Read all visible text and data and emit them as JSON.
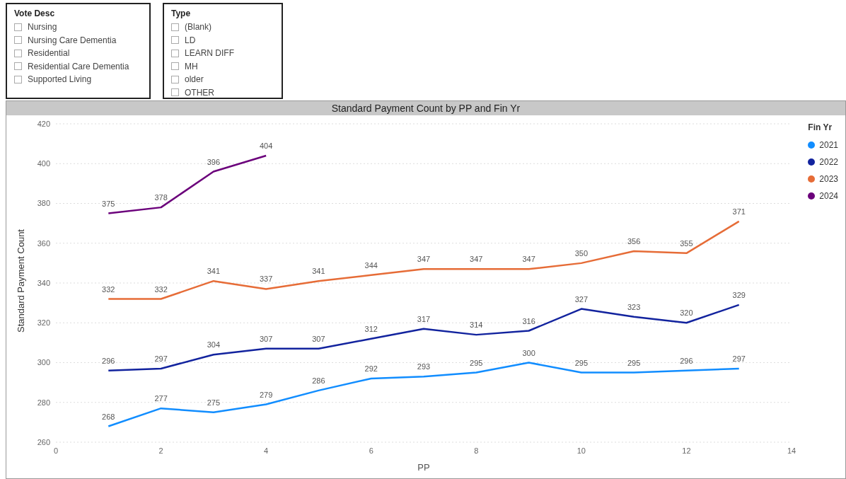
{
  "chart_data": [
    {
      "type": "other",
      "title": "Vote Desc",
      "annotations": [
        "Nursing",
        "Nursing Care Dementia",
        "Residential",
        "Residential Care Dementia",
        "Supported Living"
      ]
    },
    {
      "type": "other",
      "title": "Type",
      "annotations": [
        "(Blank)",
        "LD",
        "LEARN DIFF",
        "MH",
        "older",
        "OTHER"
      ]
    },
    {
      "type": "line",
      "title": "Standard Payment Count by PP and Fin Yr",
      "xlabel": "PP",
      "ylabel": "Standard Payment Count",
      "legend_title": "Fin Yr",
      "x": [
        1,
        2,
        3,
        4,
        5,
        6,
        7,
        8,
        9,
        10,
        11,
        12,
        13
      ],
      "series": [
        {
          "name": "2021",
          "color": "#118dff",
          "values": [
            268,
            277,
            275,
            279,
            286,
            292,
            293,
            295,
            300,
            295,
            295,
            296,
            297
          ]
        },
        {
          "name": "2022",
          "color": "#12239e",
          "values": [
            296,
            297,
            304,
            307,
            307,
            312,
            317,
            314,
            316,
            327,
            323,
            320,
            329
          ]
        },
        {
          "name": "2023",
          "color": "#e66c37",
          "values": [
            332,
            332,
            341,
            337,
            341,
            344,
            347,
            347,
            347,
            350,
            356,
            355,
            371
          ]
        },
        {
          "name": "2024",
          "color": "#6b007b",
          "x": [
            1,
            2,
            3,
            4
          ],
          "values": [
            375,
            378,
            396,
            404
          ]
        }
      ],
      "xlim": [
        0,
        14
      ],
      "xticks": [
        0,
        2,
        4,
        6,
        8,
        10,
        12,
        14
      ],
      "ylim": [
        260,
        420
      ],
      "yticks": [
        260,
        280,
        300,
        320,
        340,
        360,
        380,
        400,
        420
      ],
      "grid": "y",
      "legend": "top right",
      "marker": "none",
      "line_style": "solid",
      "data_labels": true
    }
  ]
}
